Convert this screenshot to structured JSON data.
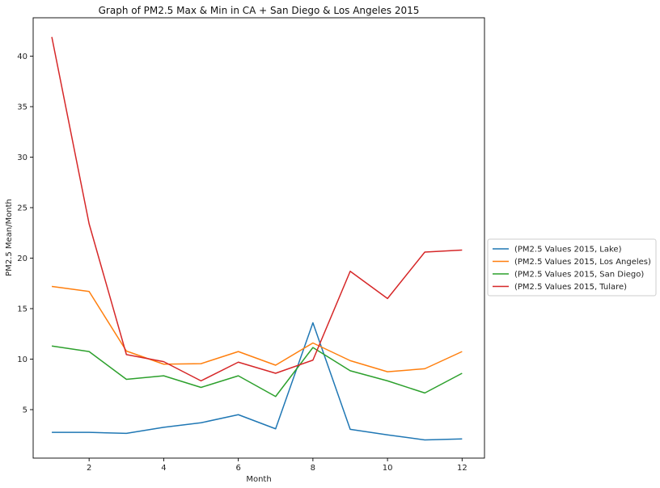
{
  "chart_data": {
    "type": "line",
    "title": "Graph of PM2.5 Max & Min in CA + San Diego & Los Angeles 2015",
    "xlabel": "Month",
    "ylabel": "PM2.5 Mean/Month",
    "x": [
      1,
      2,
      3,
      4,
      5,
      6,
      7,
      8,
      9,
      10,
      11,
      12
    ],
    "xticks": [
      2,
      4,
      6,
      8,
      10,
      12
    ],
    "yticks": [
      5,
      10,
      15,
      20,
      25,
      30,
      35,
      40
    ],
    "xlim": [
      0.5,
      12.6
    ],
    "ylim": [
      0.2,
      43.8
    ],
    "grid": false,
    "legend_position": "right",
    "series": [
      {
        "name": "(PM2.5 Values 2015, Lake)",
        "color": "#1f77b4",
        "values": [
          2.75,
          2.75,
          2.65,
          3.25,
          3.7,
          4.5,
          3.1,
          13.6,
          3.05,
          2.5,
          2.0,
          2.1
        ]
      },
      {
        "name": "(PM2.5 Values 2015, Los Angeles)",
        "color": "#ff7f0e",
        "values": [
          17.2,
          16.7,
          10.8,
          9.5,
          9.55,
          10.75,
          9.4,
          11.6,
          9.85,
          8.75,
          9.05,
          10.75
        ]
      },
      {
        "name": "(PM2.5 Values 2015, San Diego)",
        "color": "#2ca02c",
        "values": [
          11.3,
          10.75,
          8.0,
          8.35,
          7.2,
          8.35,
          6.3,
          11.15,
          8.85,
          7.85,
          6.65,
          8.6
        ]
      },
      {
        "name": "(PM2.5 Values 2015, Tulare)",
        "color": "#d62728",
        "values": [
          41.9,
          23.4,
          10.45,
          9.75,
          7.85,
          9.7,
          8.6,
          9.9,
          18.7,
          16.0,
          20.6,
          20.8
        ]
      }
    ]
  }
}
